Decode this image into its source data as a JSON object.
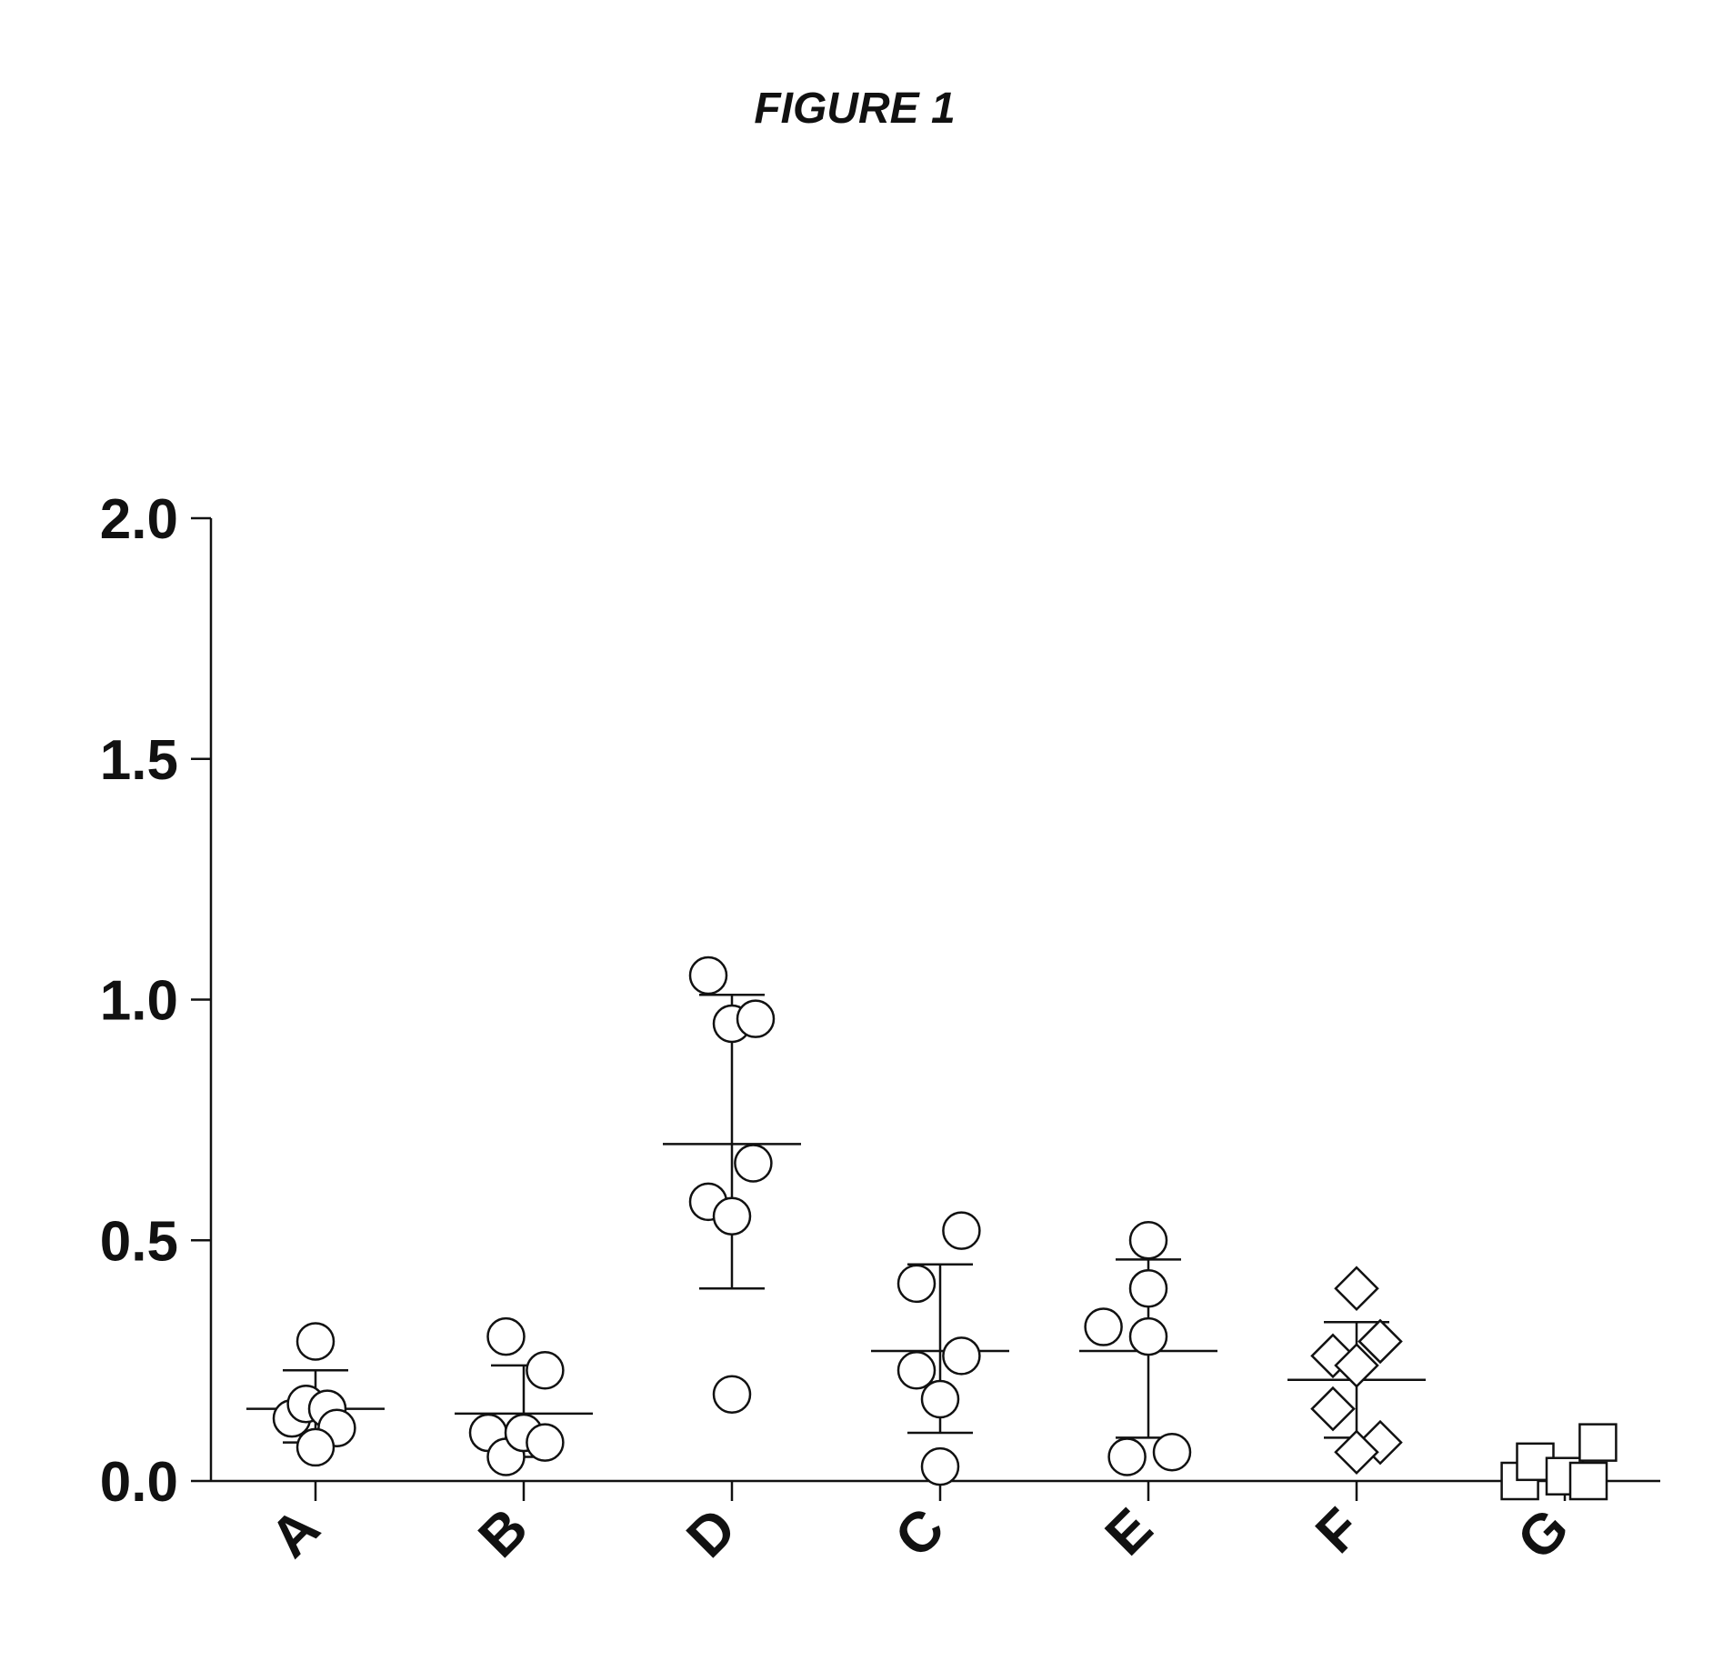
{
  "figure": {
    "title": "FIGURE 1"
  },
  "chart_data": {
    "type": "scatter",
    "title": "FIGURE 1",
    "xlabel": "",
    "ylabel": "",
    "ylim": [
      0,
      2.0
    ],
    "yticks": [
      "0.0",
      "0.5",
      "1.0",
      "1.5",
      "2.0"
    ],
    "grid": false,
    "legend": "none",
    "categories": [
      "A",
      "B",
      "D",
      "C",
      "E",
      "F",
      "G"
    ],
    "groups": [
      {
        "label": "A",
        "marker": "circle",
        "points": [
          [
            -0.2,
            0.13
          ],
          [
            -0.08,
            0.16
          ],
          [
            0.1,
            0.15
          ],
          [
            0.18,
            0.11
          ],
          [
            0.0,
            0.07
          ],
          [
            0.0,
            0.29
          ]
        ],
        "mean": 0.15,
        "sd_low": 0.08,
        "sd_high": 0.23
      },
      {
        "label": "B",
        "marker": "circle",
        "points": [
          [
            -0.3,
            0.1
          ],
          [
            -0.15,
            0.05
          ],
          [
            0.0,
            0.1
          ],
          [
            0.18,
            0.08
          ],
          [
            0.18,
            0.23
          ],
          [
            -0.15,
            0.3
          ]
        ],
        "mean": 0.14,
        "sd_low": 0.05,
        "sd_high": 0.24
      },
      {
        "label": "D",
        "marker": "circle",
        "points": [
          [
            -0.2,
            1.05
          ],
          [
            0.0,
            0.95
          ],
          [
            0.2,
            0.96
          ],
          [
            0.18,
            0.66
          ],
          [
            -0.2,
            0.58
          ],
          [
            0.0,
            0.55
          ],
          [
            0.0,
            0.18
          ]
        ],
        "mean": 0.7,
        "sd_low": 0.4,
        "sd_high": 1.01
      },
      {
        "label": "C",
        "marker": "circle",
        "points": [
          [
            -0.2,
            0.41
          ],
          [
            0.18,
            0.52
          ],
          [
            -0.2,
            0.23
          ],
          [
            0.18,
            0.26
          ],
          [
            0.0,
            0.17
          ],
          [
            0.0,
            0.03
          ]
        ],
        "mean": 0.27,
        "sd_low": 0.1,
        "sd_high": 0.45
      },
      {
        "label": "E",
        "marker": "circle",
        "points": [
          [
            -0.38,
            0.32
          ],
          [
            0.0,
            0.4
          ],
          [
            0.0,
            0.5
          ],
          [
            0.0,
            0.3
          ],
          [
            -0.18,
            0.05
          ],
          [
            0.2,
            0.06
          ]
        ],
        "mean": 0.27,
        "sd_low": 0.09,
        "sd_high": 0.46
      },
      {
        "label": "F",
        "marker": "diamond",
        "points": [
          [
            0.0,
            0.4
          ],
          [
            -0.2,
            0.26
          ],
          [
            0.2,
            0.29
          ],
          [
            0.0,
            0.24
          ],
          [
            -0.2,
            0.15
          ],
          [
            0.2,
            0.08
          ],
          [
            0.0,
            0.06
          ]
        ],
        "mean": 0.21,
        "sd_low": 0.09,
        "sd_high": 0.33
      },
      {
        "label": "G",
        "marker": "square",
        "points": [
          [
            -0.38,
            0.0
          ],
          [
            -0.25,
            0.04
          ],
          [
            0.0,
            0.01
          ],
          [
            0.2,
            0.0
          ],
          [
            0.28,
            0.08
          ]
        ],
        "mean": null,
        "sd_low": null,
        "sd_high": null
      }
    ]
  }
}
